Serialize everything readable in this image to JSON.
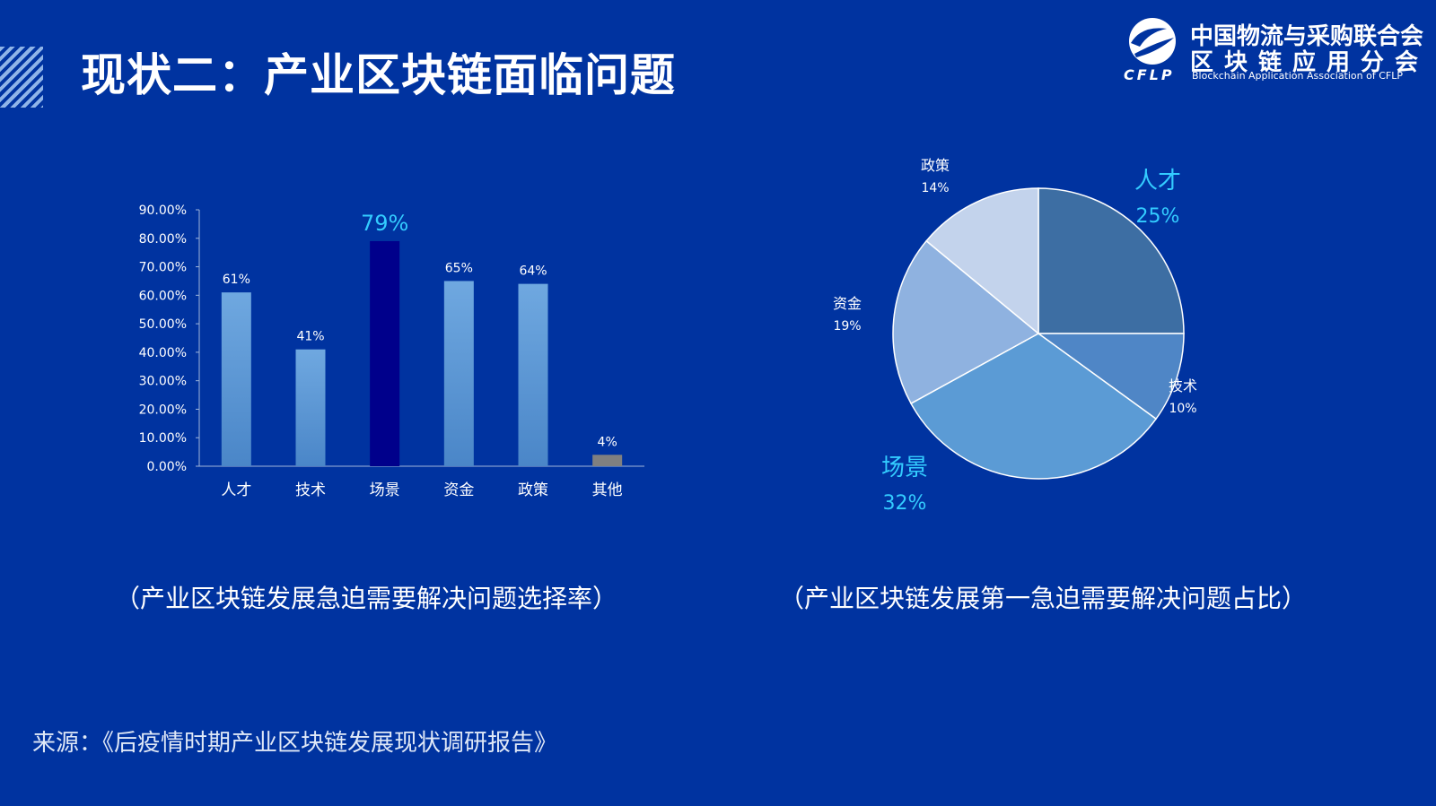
{
  "title": "现状二：产业区块链面临问题",
  "logo": {
    "abbr": "CFLP",
    "name_cn_line1": "中国物流与采购联合会",
    "name_cn_line2": "区块链应用分会",
    "name_en": "Blockchain Application Association of CFLP"
  },
  "colors": {
    "background": "#0033a0",
    "bar": "#5b9bd5",
    "bar_highlight": "#00008b",
    "bar_other": "#808080",
    "highlight_text": "#33ccff"
  },
  "chart_data": [
    {
      "type": "bar",
      "categories": [
        "人才",
        "技术",
        "场景",
        "资金",
        "政策",
        "其他"
      ],
      "values": [
        61,
        41,
        79,
        65,
        64,
        4
      ],
      "data_labels": [
        "61%",
        "41%",
        "79%",
        "65%",
        "64%",
        "4%"
      ],
      "highlight_index": 2,
      "y_ticks": [
        "0.00%",
        "10.00%",
        "20.00%",
        "30.00%",
        "40.00%",
        "50.00%",
        "60.00%",
        "70.00%",
        "80.00%",
        "90.00%"
      ],
      "ylim": [
        0,
        90
      ],
      "grid": false,
      "caption": "（产业区块链发展急迫需要解决问题选择率）"
    },
    {
      "type": "pie",
      "slices": [
        {
          "label": "人才",
          "value": 25,
          "value_label": "25%",
          "color": "#3d6ea3",
          "highlight": true
        },
        {
          "label": "技术",
          "value": 10,
          "value_label": "10%",
          "color": "#4f86c6",
          "highlight": false
        },
        {
          "label": "场景",
          "value": 32,
          "value_label": "32%",
          "color": "#5b9bd5",
          "highlight": true
        },
        {
          "label": "资金",
          "value": 19,
          "value_label": "19%",
          "color": "#8fb2e0",
          "highlight": false
        },
        {
          "label": "政策",
          "value": 14,
          "value_label": "14%",
          "color": "#c3d3ec",
          "highlight": false
        }
      ],
      "caption": "（产业区块链发展第一急迫需要解决问题占比）"
    }
  ],
  "source": "来源：《后疫情时期产业区块链发展现状调研报告》"
}
